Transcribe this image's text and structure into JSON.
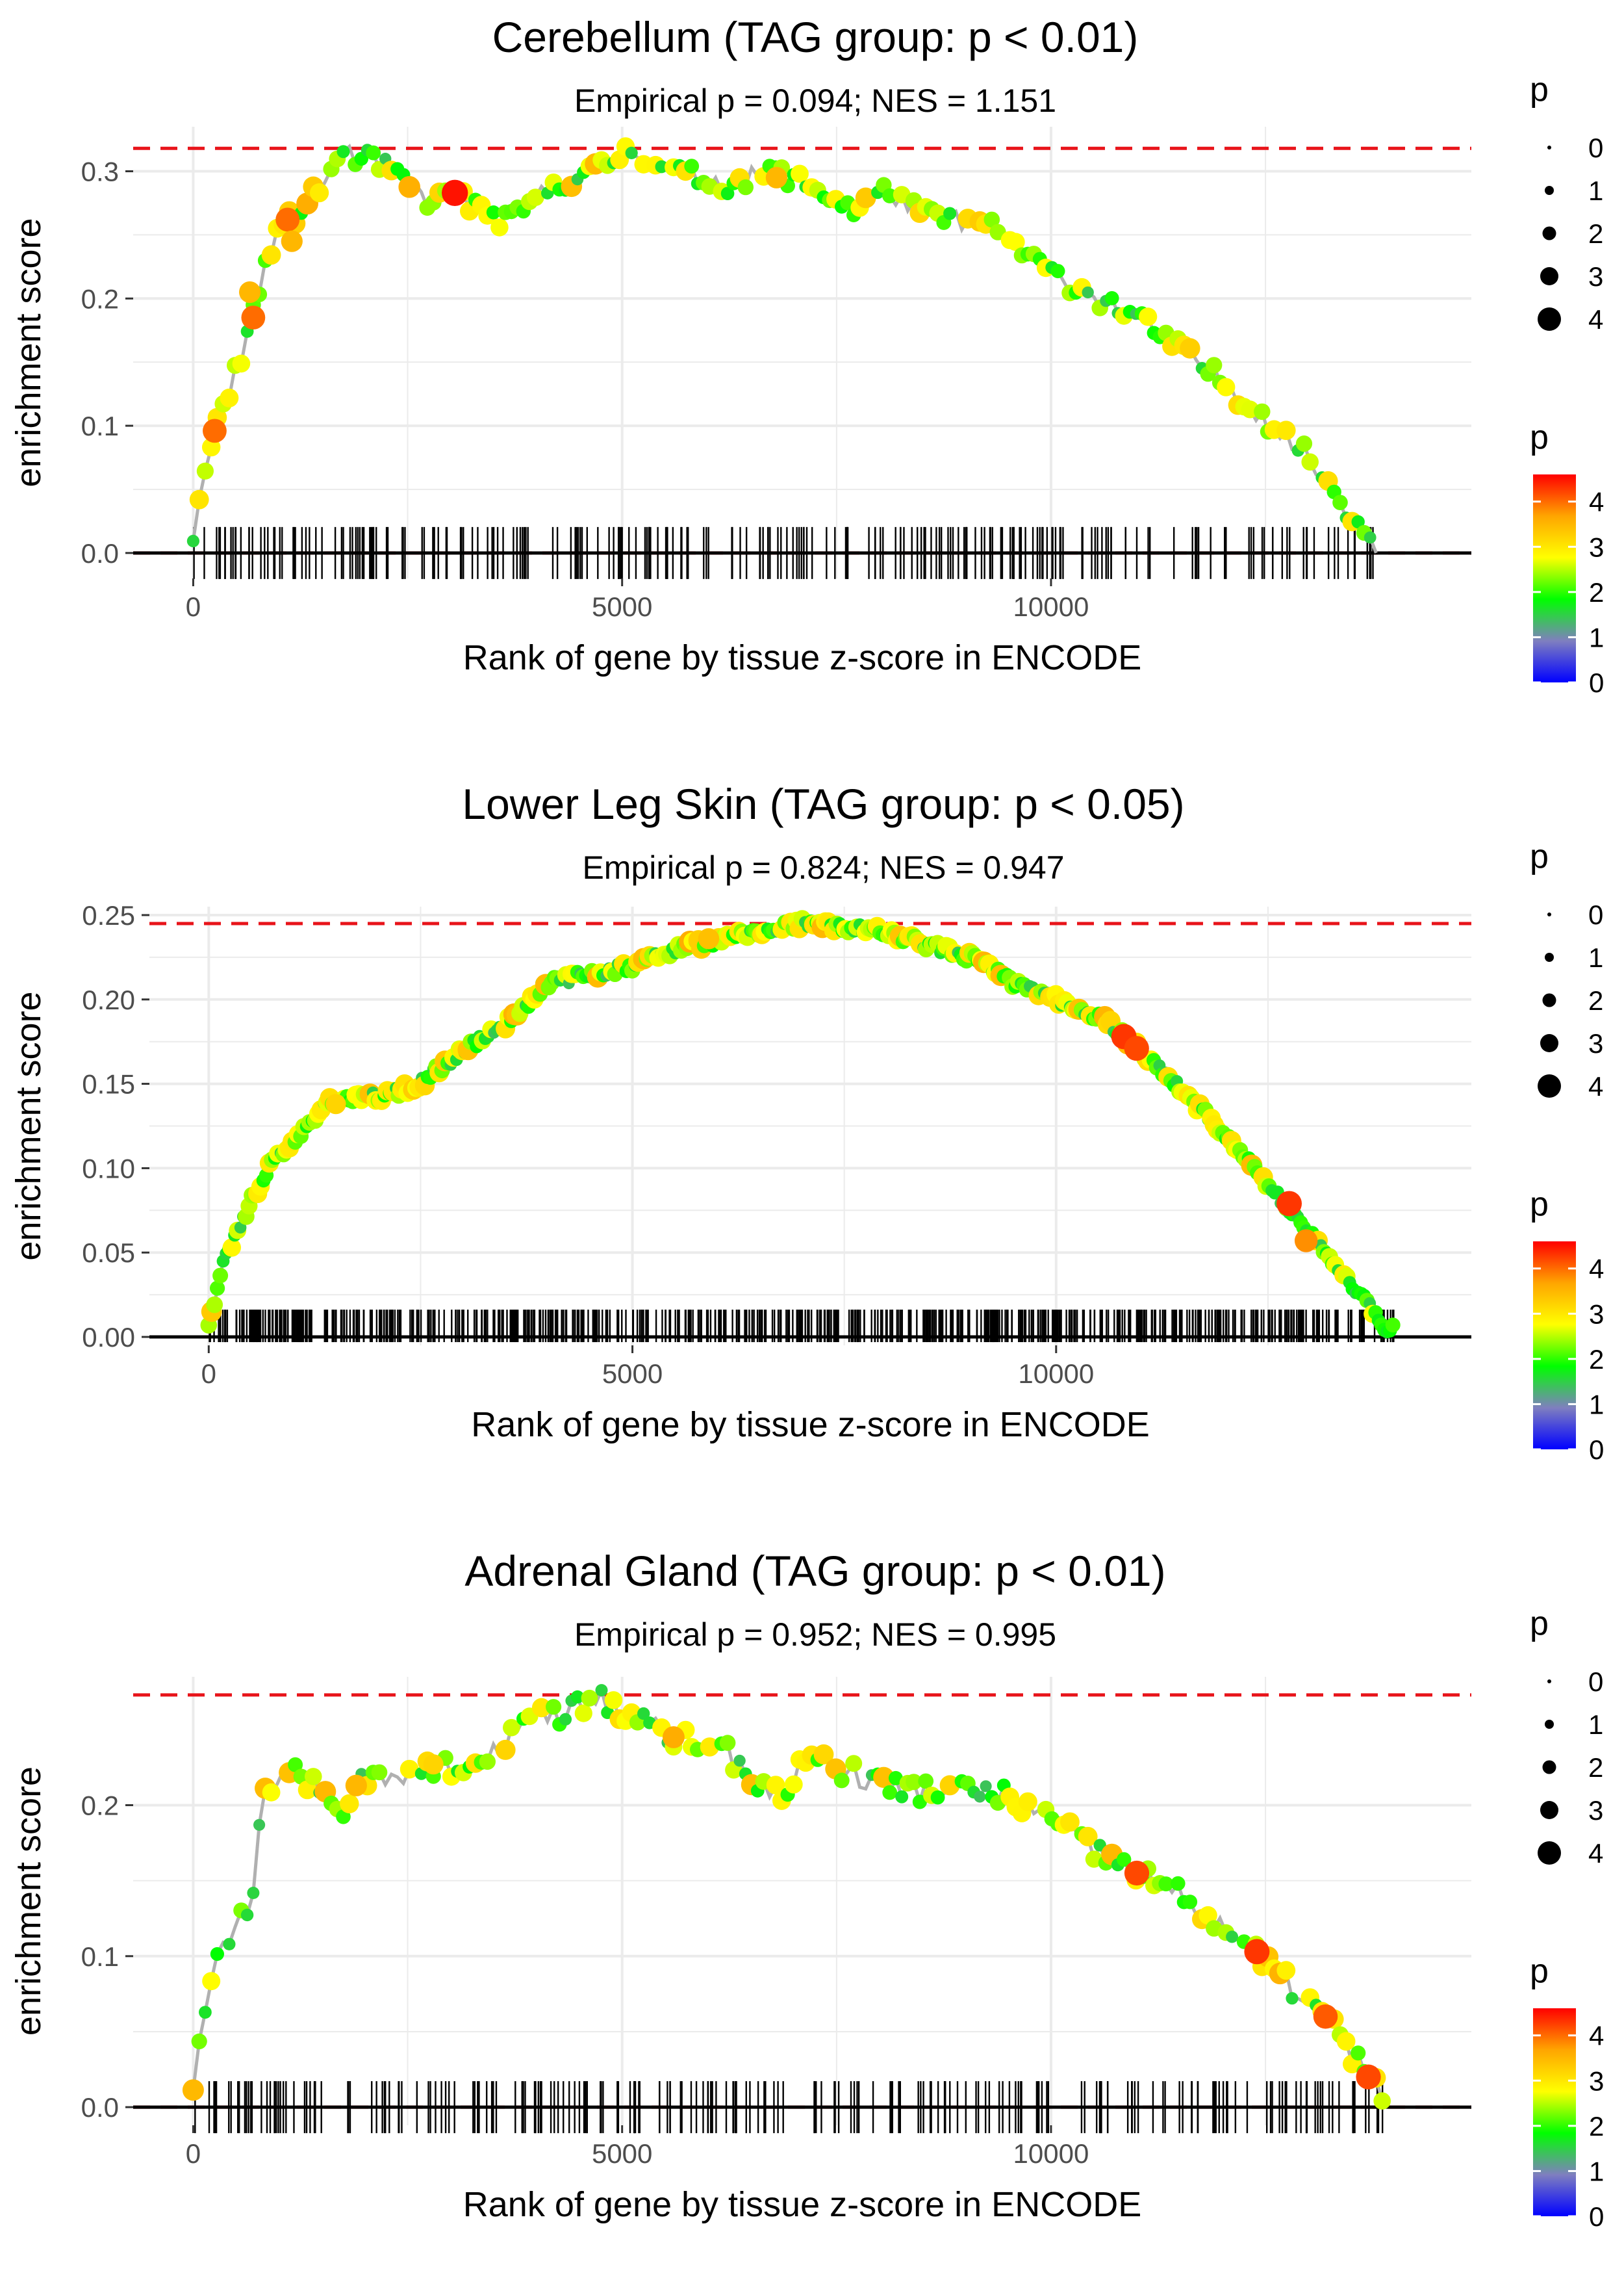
{
  "colors": {
    "ref_line": "#e8141a",
    "baseline": "#000000",
    "grid": "#ebebeb",
    "path": "#b0b0b0",
    "text": "#000000",
    "tick_text": "#4d4d4d",
    "gradient": [
      "#0000ff",
      "#7f7fbf",
      "#00ff00",
      "#ffff00",
      "#ffa500",
      "#ff0000"
    ]
  },
  "chart_data": [
    {
      "type": "scatter",
      "title": "Cerebellum (TAG group: p < 0.01)",
      "subtitle": "Empirical p = 0.094; NES = 1.151",
      "xlabel": "Rank of gene by tissue z-score in ENCODE",
      "ylabel": "enrichment score",
      "xlim": [
        -700,
        14900
      ],
      "ylim": [
        -0.02,
        0.335
      ],
      "xticks": [
        0,
        5000,
        10000
      ],
      "xtick_labels": [
        "0",
        "5000",
        "10000"
      ],
      "yticks": [
        0,
        0.1,
        0.2,
        0.3
      ],
      "ytick_labels": [
        "0.0",
        "0.1",
        "0.2",
        "0.3"
      ],
      "max_es": 0.318,
      "min_es": 0,
      "n_genes": 13800,
      "hits": 240,
      "seed": 11,
      "key_points": [
        [
          0,
          0.01
        ],
        [
          100,
          0.05
        ],
        [
          250,
          0.1
        ],
        [
          450,
          0.13
        ],
        [
          700,
          0.19
        ],
        [
          900,
          0.24
        ],
        [
          1100,
          0.26
        ],
        [
          1400,
          0.28
        ],
        [
          1750,
          0.315
        ],
        [
          2200,
          0.305
        ],
        [
          2800,
          0.275
        ],
        [
          3050,
          0.285
        ],
        [
          3300,
          0.27
        ],
        [
          3700,
          0.26
        ],
        [
          4200,
          0.29
        ],
        [
          4700,
          0.3
        ],
        [
          5100,
          0.318
        ],
        [
          5600,
          0.3
        ],
        [
          6200,
          0.29
        ],
        [
          6800,
          0.3
        ],
        [
          7300,
          0.285
        ],
        [
          7700,
          0.27
        ],
        [
          8100,
          0.285
        ],
        [
          8500,
          0.265
        ],
        [
          9200,
          0.26
        ],
        [
          10000,
          0.22
        ],
        [
          11000,
          0.185
        ],
        [
          12000,
          0.135
        ],
        [
          13000,
          0.075
        ],
        [
          13500,
          0.03
        ],
        [
          13800,
          0.005
        ]
      ],
      "highlights": [
        [
          250,
          0.096,
          4
        ],
        [
          700,
          0.185,
          4
        ],
        [
          1100,
          0.262,
          4
        ],
        [
          3050,
          0.283,
          4.5
        ],
        [
          1150,
          0.245,
          3.5
        ],
        [
          660,
          0.205,
          3.5
        ],
        [
          6800,
          0.295,
          3.5
        ]
      ],
      "size_legend": {
        "title": "p",
        "values": [
          "0",
          "1",
          "2",
          "3",
          "4"
        ]
      },
      "color_legend": {
        "title": "p",
        "values": [
          "4",
          "3",
          "2",
          "1",
          "0"
        ]
      }
    },
    {
      "type": "scatter",
      "title": "Lower Leg Skin (TAG group: p < 0.05)",
      "subtitle": "Empirical p = 0.824; NES = 0.947",
      "xlabel": "Rank of gene by tissue z-score in ENCODE",
      "ylabel": "enrichment score",
      "xlim": [
        -700,
        14900
      ],
      "ylim": [
        -0.005,
        0.255
      ],
      "xticks": [
        0,
        5000,
        10000
      ],
      "xtick_labels": [
        "0",
        "5000",
        "10000"
      ],
      "yticks": [
        0,
        0.05,
        0.1,
        0.15,
        0.2,
        0.25
      ],
      "ytick_labels": [
        "0.00",
        "0.05",
        "0.10",
        "0.15",
        "0.20",
        "0.25"
      ],
      "max_es": 0.245,
      "min_es": 0,
      "n_genes": 14000,
      "hits": 650,
      "seed": 23,
      "key_points": [
        [
          0,
          0.005
        ],
        [
          150,
          0.04
        ],
        [
          400,
          0.07
        ],
        [
          700,
          0.1
        ],
        [
          1000,
          0.115
        ],
        [
          1400,
          0.14
        ],
        [
          2000,
          0.142
        ],
        [
          2500,
          0.15
        ],
        [
          3000,
          0.17
        ],
        [
          3500,
          0.185
        ],
        [
          4000,
          0.21
        ],
        [
          4500,
          0.215
        ],
        [
          5000,
          0.22
        ],
        [
          5500,
          0.23
        ],
        [
          6000,
          0.235
        ],
        [
          7000,
          0.245
        ],
        [
          8000,
          0.24
        ],
        [
          8500,
          0.232
        ],
        [
          9000,
          0.225
        ],
        [
          9500,
          0.21
        ],
        [
          10000,
          0.2
        ],
        [
          10500,
          0.19
        ],
        [
          11000,
          0.17
        ],
        [
          11500,
          0.145
        ],
        [
          12000,
          0.12
        ],
        [
          12500,
          0.09
        ],
        [
          13000,
          0.06
        ],
        [
          13500,
          0.03
        ],
        [
          13900,
          0.005
        ]
      ],
      "highlights": [
        [
          10800,
          0.178,
          4.3
        ],
        [
          10950,
          0.171,
          4.2
        ],
        [
          12750,
          0.079,
          4.3
        ],
        [
          12950,
          0.057,
          3.8
        ],
        [
          5900,
          0.236,
          3.4
        ],
        [
          1500,
          0.138,
          3.2
        ]
      ],
      "size_legend": {
        "title": "p",
        "values": [
          "0",
          "1",
          "2",
          "3",
          "4"
        ]
      },
      "color_legend": {
        "title": "p",
        "values": [
          "4",
          "3",
          "2",
          "1",
          "0"
        ]
      }
    },
    {
      "type": "scatter",
      "title": "Adrenal Gland (TAG group: p < 0.01)",
      "subtitle": "Empirical p = 0.952; NES = 0.995",
      "xlabel": "Rank of gene by tissue z-score in ENCODE",
      "ylabel": "enrichment score",
      "xlim": [
        -700,
        14900
      ],
      "ylim": [
        -0.012,
        0.285
      ],
      "xticks": [
        0,
        5000,
        10000
      ],
      "xtick_labels": [
        "0",
        "5000",
        "10000"
      ],
      "yticks": [
        0,
        0.1,
        0.2
      ],
      "ytick_labels": [
        "0.0",
        "0.1",
        "0.2"
      ],
      "max_es": 0.273,
      "min_es": 0,
      "n_genes": 13900,
      "hits": 230,
      "seed": 37,
      "key_points": [
        [
          0,
          0.01
        ],
        [
          100,
          0.06
        ],
        [
          300,
          0.1
        ],
        [
          500,
          0.12
        ],
        [
          700,
          0.14
        ],
        [
          750,
          0.19
        ],
        [
          900,
          0.215
        ],
        [
          1150,
          0.225
        ],
        [
          1700,
          0.195
        ],
        [
          1900,
          0.215
        ],
        [
          2200,
          0.22
        ],
        [
          2800,
          0.225
        ],
        [
          3300,
          0.22
        ],
        [
          3800,
          0.255
        ],
        [
          4300,
          0.26
        ],
        [
          4700,
          0.273
        ],
        [
          5000,
          0.26
        ],
        [
          5600,
          0.245
        ],
        [
          6200,
          0.235
        ],
        [
          6900,
          0.2
        ],
        [
          7100,
          0.235
        ],
        [
          7700,
          0.22
        ],
        [
          8300,
          0.21
        ],
        [
          9000,
          0.21
        ],
        [
          9500,
          0.205
        ],
        [
          10000,
          0.19
        ],
        [
          10500,
          0.17
        ],
        [
          11000,
          0.155
        ],
        [
          11500,
          0.14
        ],
        [
          12000,
          0.12
        ],
        [
          12400,
          0.1
        ],
        [
          12800,
          0.08
        ],
        [
          13200,
          0.06
        ],
        [
          13500,
          0.035
        ],
        [
          13900,
          0.005
        ]
      ],
      "highlights": [
        [
          11000,
          0.155,
          4.2
        ],
        [
          12400,
          0.103,
          4.3
        ],
        [
          13200,
          0.06,
          4.1
        ],
        [
          13700,
          0.02,
          4.2
        ],
        [
          5600,
          0.245,
          3.6
        ],
        [
          1900,
          0.213,
          3.5
        ],
        [
          2800,
          0.227,
          3.2
        ]
      ],
      "size_legend": {
        "title": "p",
        "values": [
          "0",
          "1",
          "2",
          "3",
          "4"
        ]
      },
      "color_legend": {
        "title": "p",
        "values": [
          "4",
          "3",
          "2",
          "1",
          "0"
        ]
      }
    }
  ]
}
